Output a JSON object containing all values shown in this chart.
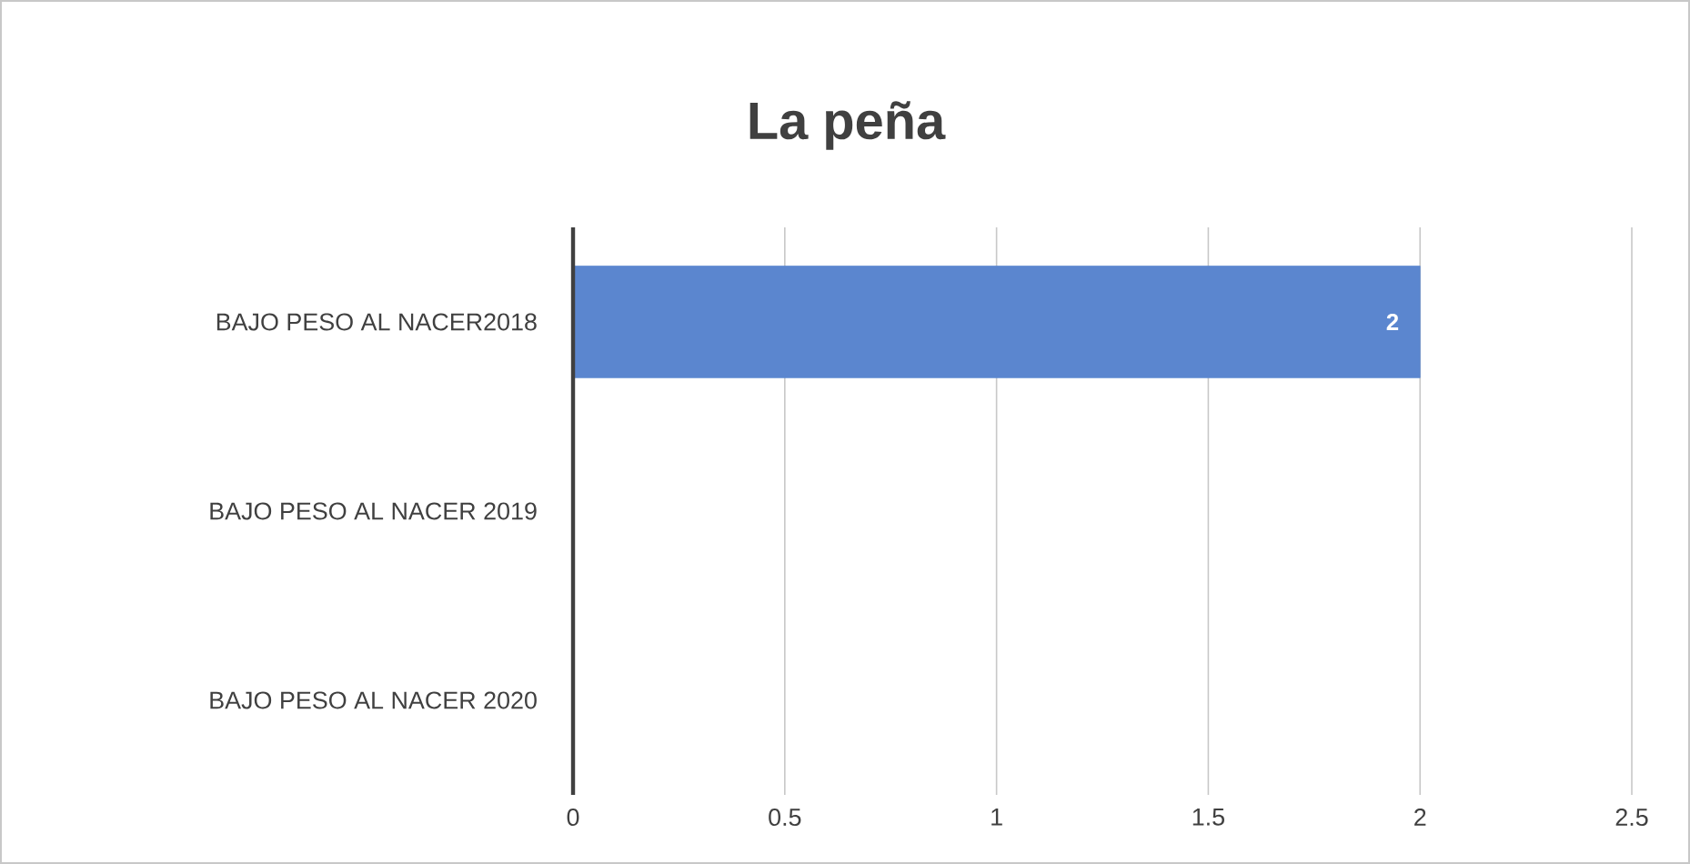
{
  "chart_data": {
    "type": "bar",
    "orientation": "horizontal",
    "title": "La peña",
    "categories": [
      "BAJO PESO AL NACER2018",
      "BAJO PESO AL NACER 2019",
      "BAJO PESO AL NACER 2020"
    ],
    "values": [
      2,
      null,
      null
    ],
    "value_labels": [
      "2",
      null,
      null
    ],
    "color": "#5b86cf",
    "xlim": [
      0,
      2.5
    ],
    "xticks": [
      0,
      0.5,
      1,
      1.5,
      2,
      2.5
    ],
    "grid": "x"
  }
}
